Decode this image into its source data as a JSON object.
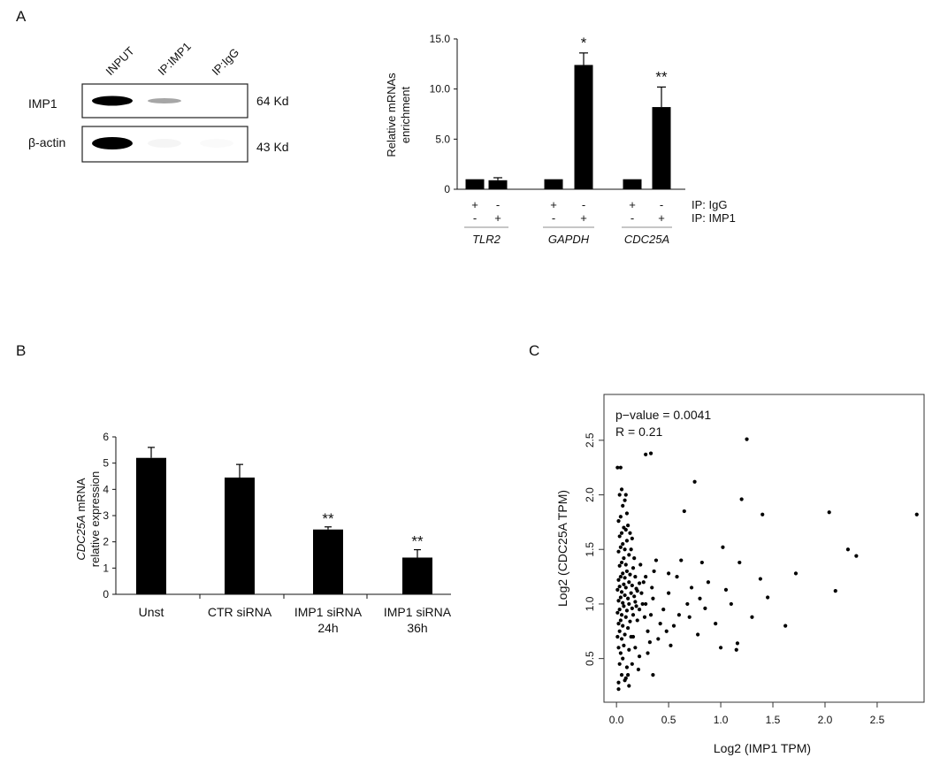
{
  "panels": {
    "a": "A",
    "b": "B",
    "c": "C"
  },
  "western_blot": {
    "lanes": [
      "INPUT",
      "IP:IMP1",
      "IP:IgG"
    ],
    "rows": [
      {
        "label": "IMP1",
        "size": "64 Kd",
        "intensity": [
          1.0,
          0.35,
          0.0
        ]
      },
      {
        "label": "β-actin",
        "size": "43 Kd",
        "intensity": [
          1.0,
          0.04,
          0.02
        ]
      }
    ]
  },
  "chart_data": [
    {
      "id": "A",
      "type": "bar",
      "ylabel_line1": "Relative mRNAs",
      "ylabel_line2": "enrichment",
      "ylim": [
        0,
        15
      ],
      "yticks": [
        "0",
        "5.0",
        "10.0",
        "15.0"
      ],
      "groups": [
        {
          "gene": "TLR2",
          "bars": [
            {
              "value": 1.0,
              "err": 0,
              "sig": ""
            },
            {
              "value": 0.9,
              "err": 0.25,
              "sig": ""
            }
          ]
        },
        {
          "gene": "GAPDH",
          "bars": [
            {
              "value": 1.0,
              "err": 0,
              "sig": ""
            },
            {
              "value": 12.4,
              "err": 1.2,
              "sig": "*"
            }
          ]
        },
        {
          "gene": "CDC25A",
          "bars": [
            {
              "value": 1.0,
              "err": 0,
              "sig": ""
            },
            {
              "value": 8.2,
              "err": 2.0,
              "sig": "**"
            }
          ]
        }
      ],
      "ip_rows": [
        {
          "label": "IP: IgG",
          "signs": [
            "+",
            "-",
            "+",
            "-",
            "+",
            "-"
          ]
        },
        {
          "label": "IP: IMP1",
          "signs": [
            "-",
            "+",
            "-",
            "+",
            "-",
            "+"
          ]
        }
      ]
    },
    {
      "id": "B",
      "type": "bar",
      "ylabel_italic": "CDC25A",
      "ylabel_rest": " mRNA",
      "ylabel_line2": "relative expression",
      "ylim": [
        0,
        6
      ],
      "yticks": [
        "0",
        "1",
        "2",
        "3",
        "4",
        "5",
        "6"
      ],
      "categories": [
        [
          "Unst"
        ],
        [
          "CTR siRNA"
        ],
        [
          "IMP1 siRNA",
          "24h"
        ],
        [
          "IMP1 siRNA",
          "36h"
        ]
      ],
      "values": [
        5.2,
        4.45,
        2.47,
        1.4
      ],
      "errors": [
        0.4,
        0.5,
        0.1,
        0.3
      ],
      "sig": [
        "",
        "",
        "**",
        "**"
      ]
    },
    {
      "id": "C",
      "type": "scatter",
      "xlabel": "Log2 (IMP1 TPM)",
      "ylabel": "Log2 (CDC25A TPM)",
      "annotation1": "p−value = 0.0041",
      "annotation2": "R = 0.21",
      "xlim": [
        -0.12,
        2.95
      ],
      "ylim": [
        0.1,
        2.92
      ],
      "xticks": [
        "0.0",
        "0.5",
        "1.0",
        "1.5",
        "2.0",
        "2.5"
      ],
      "yticks": [
        "0.5",
        "1.0",
        "1.5",
        "2.0",
        "2.5"
      ],
      "points": [
        [
          0.02,
          0.22
        ],
        [
          0.05,
          0.35
        ],
        [
          0.08,
          0.3
        ],
        [
          0.03,
          0.45
        ],
        [
          0.06,
          0.5
        ],
        [
          0.1,
          0.42
        ],
        [
          0.02,
          0.6
        ],
        [
          0.04,
          0.55
        ],
        [
          0.07,
          0.62
        ],
        [
          0.12,
          0.58
        ],
        [
          0.01,
          0.7
        ],
        [
          0.03,
          0.75
        ],
        [
          0.05,
          0.68
        ],
        [
          0.08,
          0.72
        ],
        [
          0.11,
          0.78
        ],
        [
          0.14,
          0.7
        ],
        [
          0.02,
          0.82
        ],
        [
          0.04,
          0.85
        ],
        [
          0.06,
          0.8
        ],
        [
          0.09,
          0.88
        ],
        [
          0.13,
          0.84
        ],
        [
          0.16,
          0.9
        ],
        [
          0.01,
          0.92
        ],
        [
          0.03,
          0.95
        ],
        [
          0.05,
          0.9
        ],
        [
          0.07,
          0.98
        ],
        [
          0.1,
          0.94
        ],
        [
          0.12,
          1.0
        ],
        [
          0.15,
          0.96
        ],
        [
          0.18,
          1.02
        ],
        [
          0.02,
          1.03
        ],
        [
          0.04,
          1.06
        ],
        [
          0.06,
          1.01
        ],
        [
          0.08,
          1.08
        ],
        [
          0.11,
          1.05
        ],
        [
          0.14,
          1.1
        ],
        [
          0.17,
          1.07
        ],
        [
          0.2,
          1.12
        ],
        [
          0.01,
          1.13
        ],
        [
          0.03,
          1.16
        ],
        [
          0.05,
          1.11
        ],
        [
          0.07,
          1.18
        ],
        [
          0.09,
          1.15
        ],
        [
          0.12,
          1.2
        ],
        [
          0.15,
          1.17
        ],
        [
          0.19,
          1.14
        ],
        [
          0.22,
          1.19
        ],
        [
          0.02,
          1.22
        ],
        [
          0.04,
          1.25
        ],
        [
          0.06,
          1.28
        ],
        [
          0.08,
          1.24
        ],
        [
          0.1,
          1.3
        ],
        [
          0.13,
          1.27
        ],
        [
          0.16,
          1.33
        ],
        [
          0.03,
          1.35
        ],
        [
          0.05,
          1.38
        ],
        [
          0.07,
          1.42
        ],
        [
          0.09,
          1.36
        ],
        [
          0.12,
          1.45
        ],
        [
          0.02,
          1.48
        ],
        [
          0.04,
          1.52
        ],
        [
          0.06,
          1.55
        ],
        [
          0.08,
          1.5
        ],
        [
          0.1,
          1.58
        ],
        [
          0.03,
          1.62
        ],
        [
          0.05,
          1.65
        ],
        [
          0.07,
          1.7
        ],
        [
          0.09,
          1.68
        ],
        [
          0.11,
          1.72
        ],
        [
          0.02,
          1.76
        ],
        [
          0.04,
          1.8
        ],
        [
          0.1,
          1.83
        ],
        [
          0.06,
          1.9
        ],
        [
          0.08,
          1.95
        ],
        [
          0.03,
          2.0
        ],
        [
          0.05,
          2.05
        ],
        [
          0.01,
          2.25
        ],
        [
          0.04,
          2.25
        ],
        [
          0.02,
          0.28
        ],
        [
          0.09,
          0.32
        ],
        [
          0.15,
          0.45
        ],
        [
          0.18,
          0.6
        ],
        [
          0.2,
          0.85
        ],
        [
          0.22,
          0.95
        ],
        [
          0.25,
          1.0
        ],
        [
          0.24,
          1.1
        ],
        [
          0.26,
          1.2
        ],
        [
          0.28,
          1.25
        ],
        [
          0.3,
          0.55
        ],
        [
          0.32,
          0.65
        ],
        [
          0.3,
          0.75
        ],
        [
          0.33,
          0.9
        ],
        [
          0.35,
          1.05
        ],
        [
          0.34,
          1.15
        ],
        [
          0.36,
          1.3
        ],
        [
          0.38,
          1.4
        ],
        [
          0.35,
          0.35
        ],
        [
          0.4,
          0.68
        ],
        [
          0.42,
          0.82
        ],
        [
          0.45,
          0.95
        ],
        [
          0.48,
          0.75
        ],
        [
          0.5,
          1.1
        ],
        [
          0.52,
          0.62
        ],
        [
          0.55,
          0.8
        ],
        [
          0.58,
          1.25
        ],
        [
          0.6,
          0.9
        ],
        [
          0.62,
          1.4
        ],
        [
          0.65,
          1.85
        ],
        [
          0.68,
          1.0
        ],
        [
          0.7,
          0.88
        ],
        [
          0.72,
          1.15
        ],
        [
          0.75,
          2.12
        ],
        [
          0.78,
          0.72
        ],
        [
          0.8,
          1.05
        ],
        [
          0.82,
          1.38
        ],
        [
          0.85,
          0.96
        ],
        [
          0.88,
          1.2
        ],
        [
          0.95,
          0.82
        ],
        [
          1.0,
          0.6
        ],
        [
          1.02,
          1.52
        ],
        [
          1.05,
          1.13
        ],
        [
          1.1,
          1.0
        ],
        [
          1.15,
          0.58
        ],
        [
          1.16,
          0.64
        ],
        [
          1.18,
          1.38
        ],
        [
          1.2,
          1.96
        ],
        [
          1.25,
          2.51
        ],
        [
          1.3,
          0.88
        ],
        [
          1.38,
          1.23
        ],
        [
          1.4,
          1.82
        ],
        [
          1.45,
          1.06
        ],
        [
          1.62,
          0.8
        ],
        [
          1.72,
          1.28
        ],
        [
          2.04,
          1.84
        ],
        [
          2.1,
          1.12
        ],
        [
          2.22,
          1.5
        ],
        [
          2.3,
          1.44
        ],
        [
          2.88,
          1.82
        ],
        [
          0.28,
          2.37
        ],
        [
          0.33,
          2.38
        ],
        [
          0.5,
          1.28
        ],
        [
          0.28,
          1.0
        ],
        [
          0.12,
          0.25
        ],
        [
          0.18,
          1.25
        ],
        [
          0.22,
          0.52
        ],
        [
          0.15,
          1.6
        ],
        [
          0.27,
          0.88
        ],
        [
          0.23,
          1.36
        ],
        [
          0.16,
          0.7
        ],
        [
          0.21,
          0.4
        ],
        [
          0.19,
          0.98
        ],
        [
          0.14,
          1.5
        ],
        [
          0.17,
          1.42
        ],
        [
          0.11,
          0.35
        ],
        [
          0.13,
          1.65
        ],
        [
          0.09,
          2.0
        ]
      ]
    }
  ]
}
